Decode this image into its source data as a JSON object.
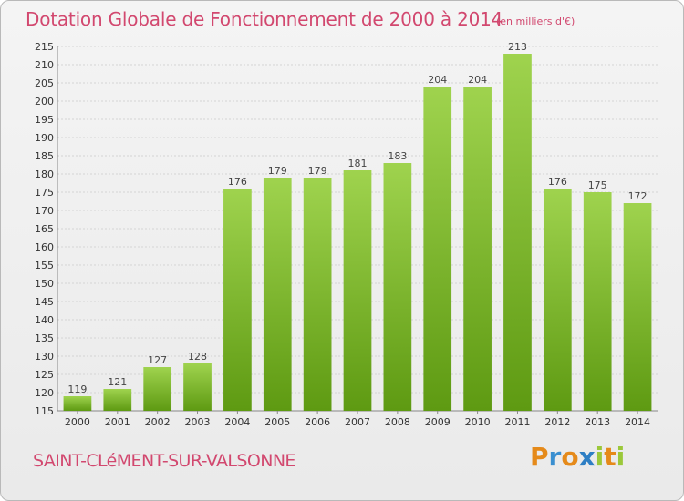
{
  "chart_data": {
    "type": "bar",
    "title": "Dotation Globale de Fonctionnement de 2000 à 2014",
    "unit": "(en milliers d'€)",
    "subtitle": "SAINT-CLéMENT-SUR-VALSONNE",
    "categories": [
      "2000",
      "2001",
      "2002",
      "2003",
      "2004",
      "2005",
      "2006",
      "2007",
      "2008",
      "2009",
      "2010",
      "2011",
      "2012",
      "2013",
      "2014"
    ],
    "values": [
      119,
      121,
      127,
      128,
      176,
      179,
      179,
      181,
      183,
      204,
      204,
      213,
      176,
      175,
      172
    ],
    "data_labels": [
      "119",
      "121",
      "127",
      "128",
      "176",
      "179",
      "179",
      "181",
      "183",
      "204",
      "204",
      "213",
      "176",
      "175",
      "172"
    ],
    "ylim": [
      115,
      215
    ],
    "yticks": [
      "115",
      "120",
      "125",
      "130",
      "135",
      "140",
      "145",
      "150",
      "155",
      "160",
      "165",
      "170",
      "175",
      "180",
      "185",
      "190",
      "195",
      "200",
      "205",
      "210",
      "215"
    ],
    "grid": true,
    "colors": {
      "bar_light": "#9fd34e",
      "bar_dark": "#5e9a12",
      "title": "#d2486f"
    }
  },
  "logo": {
    "letters": [
      "P",
      "r",
      "o",
      "x",
      "i",
      "t",
      "i"
    ],
    "colors": [
      "#e58a1a",
      "#3a8fd0",
      "#e58a1a",
      "#2e7fc4",
      "#9bc83a",
      "#e58a1a",
      "#9bc83a"
    ]
  }
}
